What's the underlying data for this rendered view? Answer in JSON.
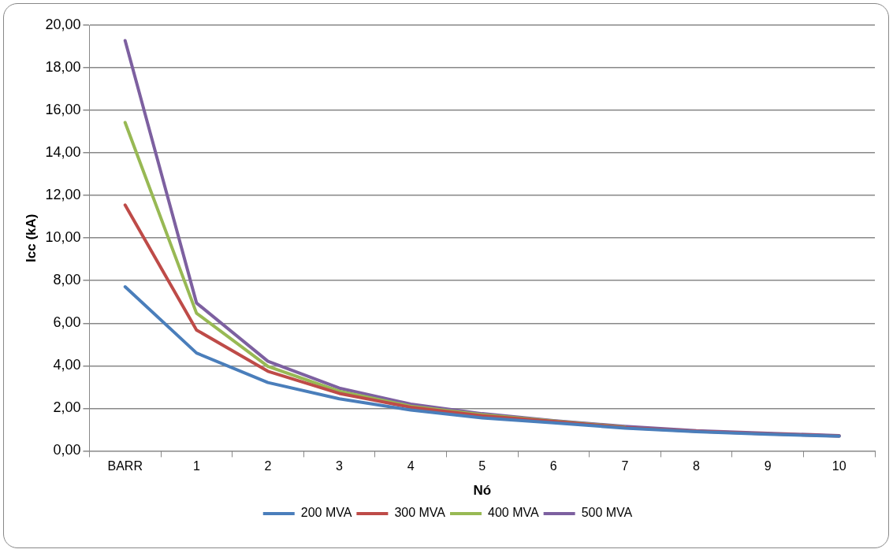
{
  "chart_data": {
    "type": "line",
    "xlabel": "Nó",
    "ylabel": "Icc (kA)",
    "categories": [
      "BARR",
      "1",
      "2",
      "3",
      "4",
      "5",
      "6",
      "7",
      "8",
      "9",
      "10"
    ],
    "series": [
      {
        "name": "200 MVA",
        "color": "#4a7ebb",
        "values": [
          7.71,
          4.6,
          3.21,
          2.45,
          1.92,
          1.55,
          1.32,
          1.07,
          0.9,
          0.78,
          0.69
        ]
      },
      {
        "name": "300 MVA",
        "color": "#be4b48",
        "values": [
          11.55,
          5.68,
          3.74,
          2.7,
          2.05,
          1.65,
          1.38,
          1.1,
          0.92,
          0.8,
          0.7
        ]
      },
      {
        "name": "400 MVA",
        "color": "#98b954",
        "values": [
          15.43,
          6.47,
          3.97,
          2.8,
          2.1,
          1.7,
          1.4,
          1.12,
          null,
          null,
          null
        ]
      },
      {
        "name": "500 MVA",
        "color": "#7d60a0",
        "values": [
          19.28,
          6.95,
          4.21,
          2.95,
          2.2,
          1.75,
          1.42,
          1.15,
          0.95,
          0.83,
          0.72
        ]
      }
    ],
    "ylim": [
      0,
      20
    ],
    "yticks": [
      {
        "value": 0,
        "label": "0,00"
      },
      {
        "value": 2,
        "label": "2,00"
      },
      {
        "value": 4,
        "label": "4,00"
      },
      {
        "value": 6,
        "label": "6,00"
      },
      {
        "value": 8,
        "label": "8,00"
      },
      {
        "value": 10,
        "label": "10,00"
      },
      {
        "value": 12,
        "label": "12,00"
      },
      {
        "value": 14,
        "label": "14,00"
      },
      {
        "value": 16,
        "label": "16,00"
      },
      {
        "value": 18,
        "label": "18,00"
      },
      {
        "value": 20,
        "label": "20,00"
      }
    ],
    "grid": "y",
    "legend": "bottom",
    "marker": "none",
    "line_style": "solid"
  }
}
